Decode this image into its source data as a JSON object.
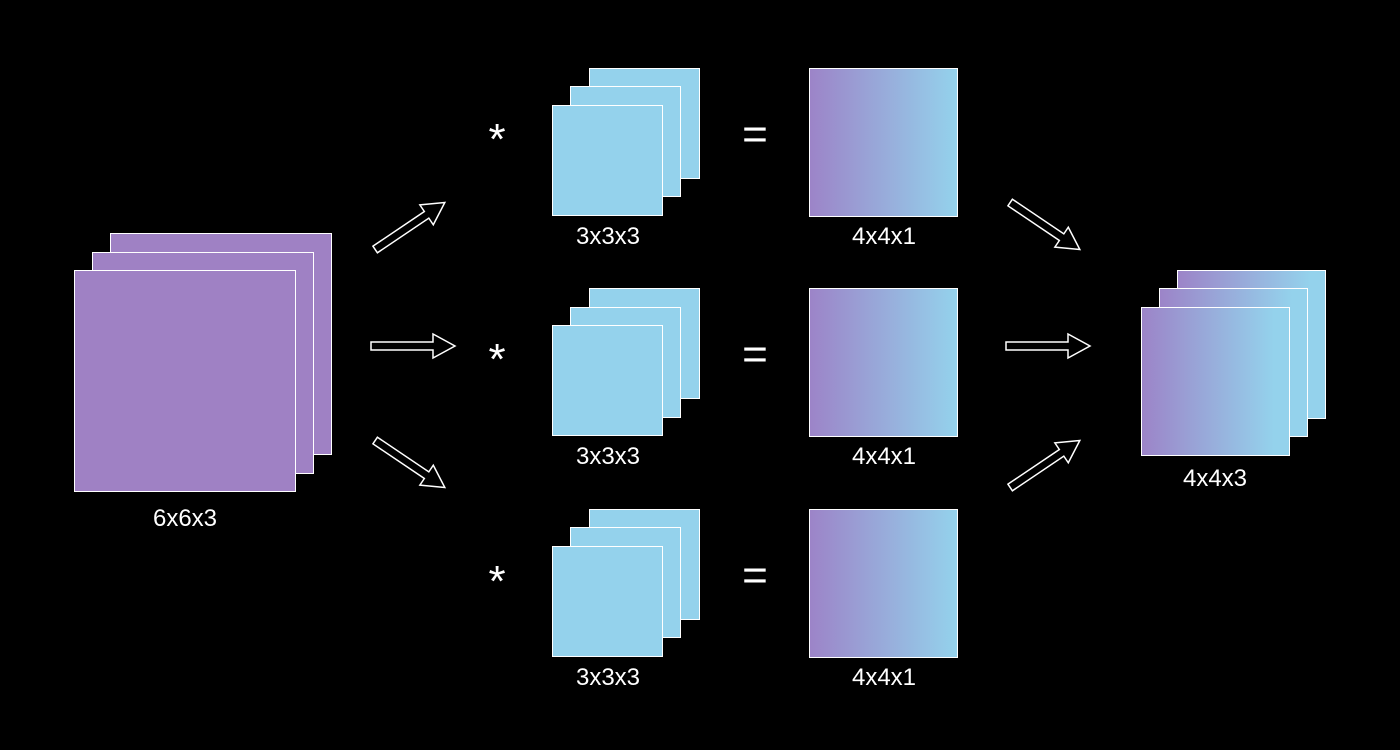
{
  "input": {
    "label": "6x6x3"
  },
  "filters": [
    {
      "label": "3x3x3"
    },
    {
      "label": "3x3x3"
    },
    {
      "label": "3x3x3"
    }
  ],
  "outputs": [
    {
      "label": "4x4x1"
    },
    {
      "label": "4x4x1"
    },
    {
      "label": "4x4x1"
    }
  ],
  "result": {
    "label": "4x4x3"
  },
  "operators": {
    "convolve": "*",
    "equals": "="
  },
  "colors": {
    "background": "#000000",
    "input_fill": "#9f81c4",
    "filter_fill": "#94d2ec",
    "gradient_start": "#9c84c8",
    "gradient_end": "#94d2ec",
    "stroke": "#ffffff"
  }
}
